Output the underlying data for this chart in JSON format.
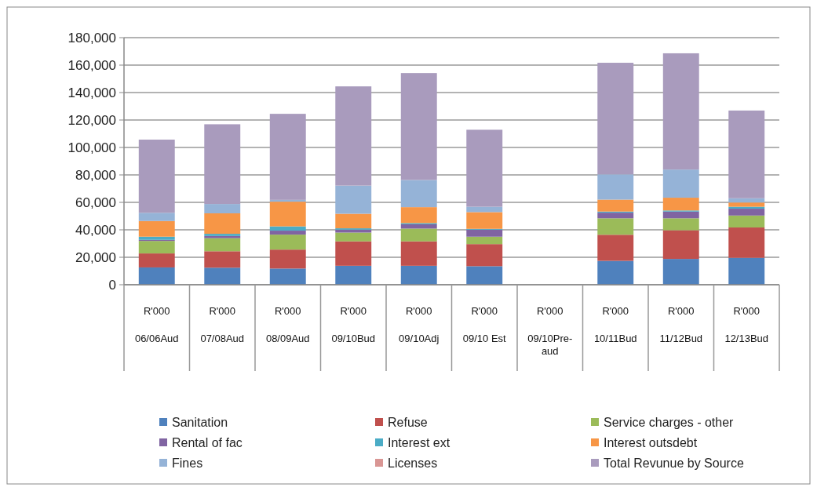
{
  "chart_data": {
    "type": "bar",
    "stacked": true,
    "categories": [
      "R'000\n06/06Aud",
      "R'000\n07/08Aud",
      "R'000\n08/09Aud",
      "R'000\n09/10Bud",
      "R'000\n09/10Adj",
      "R'000\n09/10 Est",
      "R'000\n09/10Pre-aud",
      "R'000\n10/11Bud",
      "R'000\n11/12Bud",
      "R'000\n12/13Bud"
    ],
    "series": [
      {
        "name": "Sanitation",
        "color": "#4f81bd",
        "values": [
          12600,
          12400,
          11800,
          13800,
          13800,
          13500,
          0,
          17400,
          18800,
          19600
        ]
      },
      {
        "name": "Refuse",
        "color": "#c0504d",
        "values": [
          10200,
          12000,
          13800,
          17800,
          17800,
          16100,
          0,
          19000,
          20900,
          22100
        ]
      },
      {
        "name": "Service charges - other",
        "color": "#9bbb59",
        "values": [
          9100,
          9500,
          10900,
          6400,
          9300,
          5400,
          0,
          12000,
          8700,
          8700
        ]
      },
      {
        "name": "Rental of fac",
        "color": "#8064a2",
        "values": [
          800,
          1600,
          2900,
          2100,
          3100,
          5100,
          0,
          4100,
          4900,
          5000
        ]
      },
      {
        "name": "Interest ext",
        "color": "#4bacc6",
        "values": [
          2300,
          1600,
          3100,
          1000,
          900,
          600,
          0,
          800,
          800,
          1400
        ]
      },
      {
        "name": "Interest  outsdebt",
        "color": "#f79646",
        "values": [
          11400,
          14900,
          18000,
          10600,
          11600,
          12200,
          0,
          8700,
          9300,
          3100
        ]
      },
      {
        "name": "Fines",
        "color": "#95b3d7",
        "values": [
          6000,
          6800,
          1300,
          20500,
          19800,
          3900,
          0,
          18400,
          20500,
          3100
        ]
      },
      {
        "name": "Licenses",
        "color": "#d99694",
        "values": [
          0,
          0,
          0,
          0,
          0,
          0,
          0,
          0,
          0,
          0
        ]
      },
      {
        "name": "Total Revunue by Source",
        "color": "#a99bbd",
        "values": [
          53300,
          58100,
          62700,
          72300,
          77900,
          56100,
          0,
          81300,
          84700,
          63900
        ]
      }
    ],
    "ylim": [
      0,
      180000
    ],
    "yticks": [
      {
        "value": 0,
        "label": "0"
      },
      {
        "value": 20000,
        "label": "20,000"
      },
      {
        "value": 40000,
        "label": "40,000"
      },
      {
        "value": 60000,
        "label": "60,000"
      },
      {
        "value": 80000,
        "label": "80,000"
      },
      {
        "value": 100000,
        "label": "100,000"
      },
      {
        "value": 120000,
        "label": "120,000"
      },
      {
        "value": 140000,
        "label": "140,000"
      },
      {
        "value": 160000,
        "label": "160,000"
      },
      {
        "value": 180000,
        "label": "180,000"
      }
    ],
    "grid": "y",
    "legend": "bottom"
  }
}
